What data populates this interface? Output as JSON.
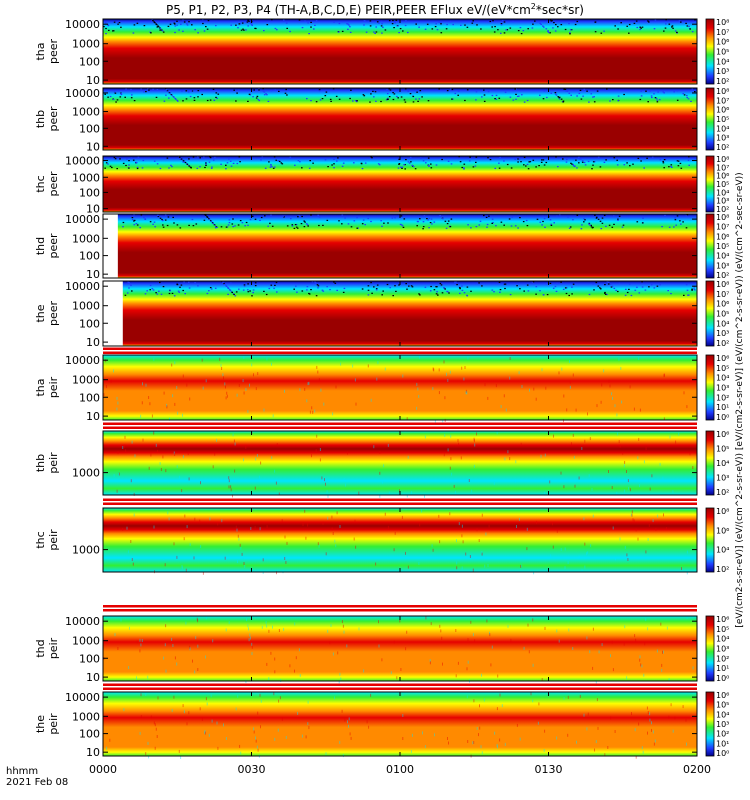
{
  "title": {
    "main": "P5, P1, P2, P3, P4 (TH-A,B,C,D,E) PEIR,PEER EFlux eV/(eV*cm",
    "sup": "2",
    "tail": "*sec*sr)"
  },
  "footer": {
    "label": "hhmm",
    "date": "2021 Feb 08"
  },
  "colorbar_label": "[eV/(cm2-s-sr-eV)] (eV/(cm^2-s-sr-eV)) [eV/(cm2-s-sr-eV)] (eV/(cm^2-s-sr-eV)) (eV/(cm^2-sec-sr-eV))",
  "colors": {
    "dark_red": "#9a0000",
    "red": "#e50000",
    "orange": "#ff8a00",
    "yellow": "#ffff00",
    "green": "#33ee33",
    "cyan": "#00e5ff",
    "blue": "#1f3bff",
    "navy": "#00008a"
  },
  "chart_data": {
    "type": "heatmap",
    "x_axis": {
      "label": "hhmm",
      "ticks": [
        "0000",
        "0030",
        "0100",
        "0130",
        "0200"
      ],
      "range": [
        "0000",
        "0200"
      ]
    },
    "panels": [
      {
        "name": "tha peer",
        "label1": "tha",
        "label2": "peer",
        "kind": "peer",
        "yticks": [
          "10000",
          "1000",
          "100",
          "10"
        ],
        "cbticks": [
          "10⁸",
          "10⁷",
          "10⁶",
          "10⁵",
          "10⁴",
          "10³",
          "10²"
        ],
        "cbrange": [
          "10²",
          "10⁸"
        ],
        "gap_start_hhmm": null
      },
      {
        "name": "thb peer",
        "label1": "thb",
        "label2": "peer",
        "kind": "peer",
        "yticks": [
          "10000",
          "1000",
          "100",
          "10"
        ],
        "cbticks": [
          "10⁸",
          "10⁷",
          "10⁶",
          "10⁵",
          "10⁴",
          "10³",
          "10²"
        ],
        "cbrange": [
          "10²",
          "10⁸"
        ],
        "gap_start_hhmm": null
      },
      {
        "name": "thc peer",
        "label1": "thc",
        "label2": "peer",
        "kind": "peer",
        "yticks": [
          "10000",
          "1000",
          "100",
          "10"
        ],
        "cbticks": [
          "10⁸",
          "10⁷",
          "10⁶",
          "10⁵",
          "10⁴",
          "10³",
          "10²"
        ],
        "cbrange": [
          "10²",
          "10⁸"
        ],
        "gap_start_hhmm": null
      },
      {
        "name": "thd peer",
        "label1": "thd",
        "label2": "peer",
        "kind": "peer",
        "yticks": [
          "10000",
          "1000",
          "100",
          "10"
        ],
        "cbticks": [
          "10⁸",
          "10⁷",
          "10⁶",
          "10⁵",
          "10⁴",
          "10³",
          "10²"
        ],
        "cbrange": [
          "10²",
          "10⁸"
        ],
        "gap_start_hhmm": "0003"
      },
      {
        "name": "the peer",
        "label1": "the",
        "label2": "peer",
        "kind": "peer",
        "yticks": [
          "10000",
          "1000",
          "100",
          "10"
        ],
        "cbticks": [
          "10⁸",
          "10⁷",
          "10⁶",
          "10⁵",
          "10⁴",
          "10³",
          "10²"
        ],
        "cbrange": [
          "10²",
          "10⁸"
        ],
        "gap_start_hhmm": "0004"
      },
      {
        "name": "tha peir",
        "label1": "tha",
        "label2": "peir",
        "kind": "peir",
        "yticks": [
          "10000",
          "1000",
          "100",
          "10"
        ],
        "cbticks": [
          "10⁶",
          "10⁵",
          "10⁴",
          "10³",
          "10²",
          "10¹",
          "10⁰"
        ],
        "cbrange": [
          "10⁰",
          "10⁶"
        ],
        "gap_start_hhmm": null
      },
      {
        "name": "thb peir",
        "label1": "thb",
        "label2": "peir",
        "kind": "band",
        "yticks": [
          "1000"
        ],
        "cbticks": [
          "10⁶",
          "10⁵",
          "10⁴",
          "10³",
          "10²"
        ],
        "cbrange": [
          "10²",
          "10⁶"
        ],
        "gap_start_hhmm": null
      },
      {
        "name": "thc peir",
        "label1": "thc",
        "label2": "peir",
        "kind": "band",
        "yticks": [
          "1000"
        ],
        "cbticks": [
          "10⁸",
          "10⁶",
          "10⁴",
          "10²"
        ],
        "cbrange": [
          "10²",
          "10⁸"
        ],
        "gap_start_hhmm": null
      },
      {
        "name": "thd peir",
        "label1": "thd",
        "label2": "peir",
        "kind": "peir",
        "yticks": [
          "10000",
          "1000",
          "100",
          "10"
        ],
        "cbticks": [
          "10⁶",
          "10⁵",
          "10⁴",
          "10³",
          "10²",
          "10¹",
          "10⁰"
        ],
        "cbrange": [
          "10⁰",
          "10⁶"
        ],
        "gap_start_hhmm": null
      },
      {
        "name": "the peir",
        "label1": "the",
        "label2": "peir",
        "kind": "peir",
        "yticks": [
          "10000",
          "1000",
          "100",
          "10"
        ],
        "cbticks": [
          "10⁶",
          "10⁵",
          "10⁴",
          "10³",
          "10²",
          "10¹",
          "10⁰"
        ],
        "cbrange": [
          "10⁰",
          "10⁶"
        ],
        "gap_start_hhmm": null
      }
    ]
  }
}
